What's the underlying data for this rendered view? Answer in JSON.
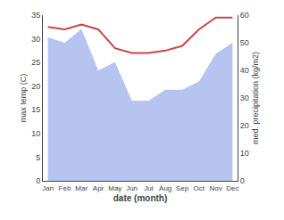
{
  "chart_data": {
    "type": "line",
    "categories": [
      "Jan",
      "Feb",
      "Mar",
      "Apr",
      "May",
      "Jun",
      "Jul",
      "Aug",
      "Sep",
      "Oct",
      "Nov",
      "Dec"
    ],
    "series": [
      {
        "type": "area",
        "color": "#b8c4f0",
        "axis": "y2",
        "values": [
          52,
          50,
          55,
          40,
          43,
          29,
          29,
          33,
          33,
          36,
          46,
          50
        ]
      },
      {
        "type": "line",
        "color": "#cc4444",
        "values": [
          32.5,
          32.0,
          33.0,
          32.0,
          28.0,
          27.0,
          27.0,
          27.5,
          28.5,
          32.0,
          34.5,
          34.5
        ]
      }
    ],
    "xlabel": "date (month)",
    "ylabel": "max temp (C)",
    "y2label": "med. precipitation (kg/m2)",
    "ylim": [
      0,
      35
    ],
    "yticks": [
      0,
      5,
      10,
      15,
      20,
      25,
      30,
      35
    ],
    "y2lim": [
      0,
      60
    ],
    "y2ticks": [
      0,
      10,
      20,
      30,
      40,
      50,
      60
    ],
    "grid": false
  }
}
